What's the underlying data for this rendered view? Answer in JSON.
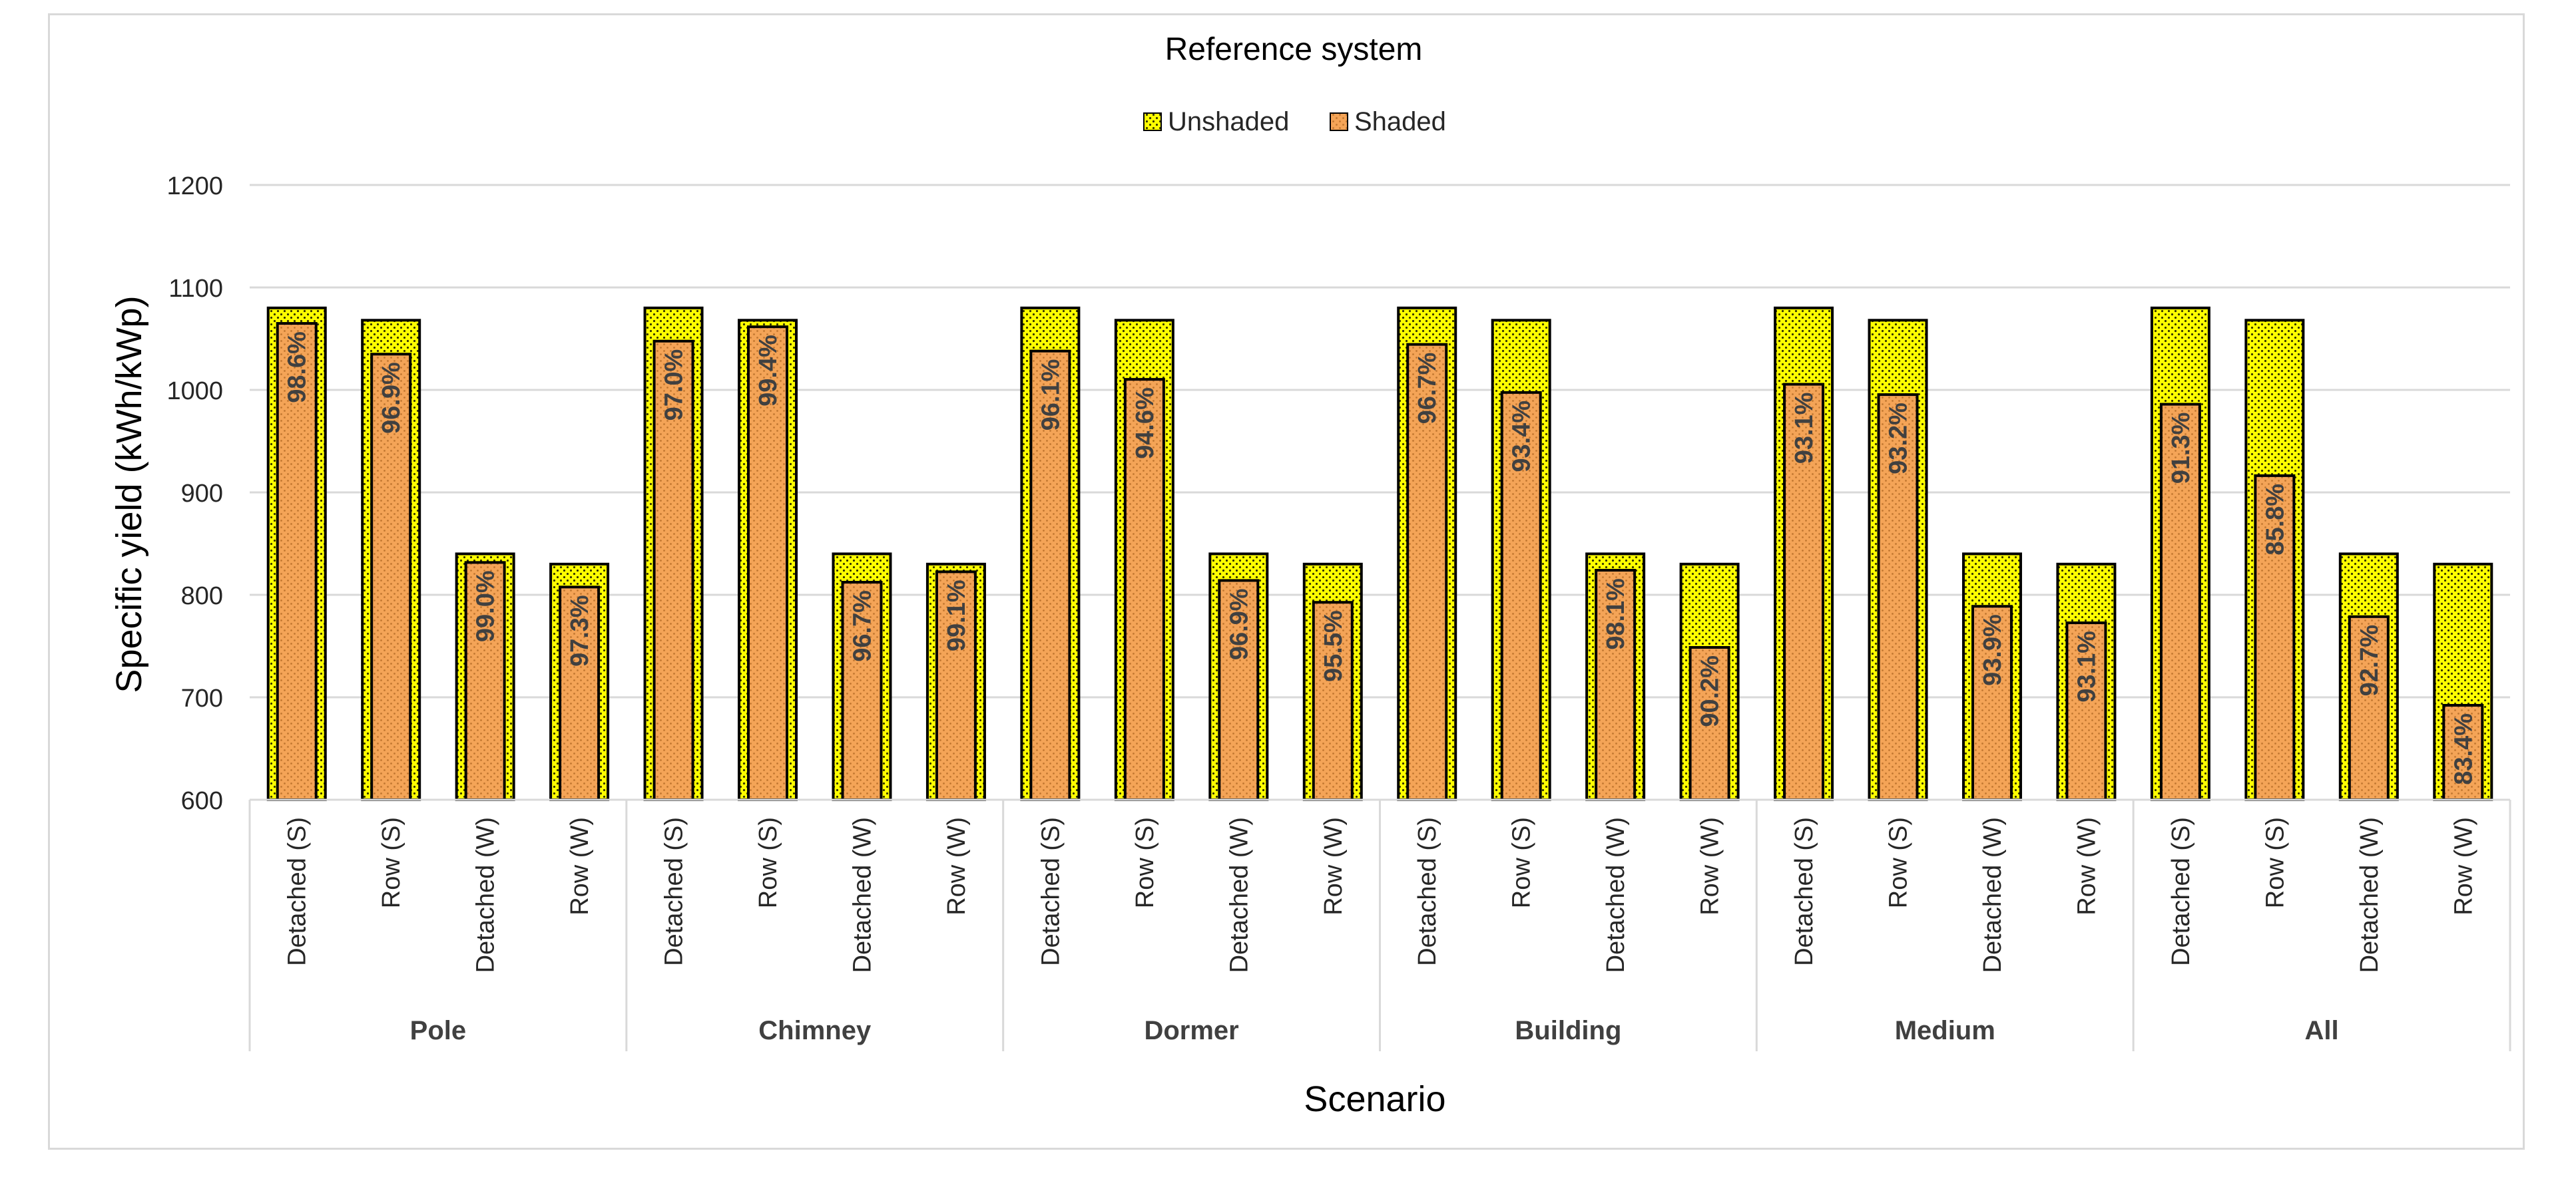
{
  "chart_data": {
    "type": "bar",
    "title": "Reference system",
    "xlabel": "Scenario",
    "ylabel": "Specific yield (kWh/kWp)",
    "ylim": [
      600,
      1200
    ],
    "yticks": [
      "600",
      "700",
      "800",
      "900",
      "1000",
      "1100",
      "1200"
    ],
    "grid": true,
    "legend_position": "top-center",
    "groups": [
      "Pole",
      "Chimney",
      "Dormer",
      "Building",
      "Medium",
      "All"
    ],
    "subcategories": [
      "Detached (S)",
      "Row (S)",
      "Detached (W)",
      "Row (W)"
    ],
    "series": [
      {
        "name": "Unshaded",
        "color": "#ffff00",
        "values": [
          1080,
          1068,
          840,
          830,
          1080,
          1068,
          840,
          830,
          1080,
          1068,
          840,
          830,
          1080,
          1068,
          840,
          830,
          1080,
          1068,
          840,
          830,
          1080,
          1068,
          840,
          830
        ]
      },
      {
        "name": "Shaded",
        "color": "#f4a457",
        "values": [
          1064.9,
          1034.9,
          831.6,
          807.6,
          1047.6,
          1061.6,
          812.3,
          822.5,
          1037.9,
          1010.3,
          814,
          792.7,
          1044.4,
          997.5,
          824,
          748.7,
          1005.5,
          995.4,
          788.8,
          772.7,
          986,
          916.3,
          778.7,
          692.2
        ],
        "labels": [
          "98.6%",
          "96.9%",
          "99.0%",
          "97.3%",
          "97.0%",
          "99.4%",
          "96.7%",
          "99.1%",
          "96.1%",
          "94.6%",
          "96.9%",
          "95.5%",
          "96.7%",
          "93.4%",
          "98.1%",
          "90.2%",
          "93.1%",
          "93.2%",
          "93.9%",
          "93.1%",
          "91.3%",
          "85.8%",
          "92.7%",
          "83.4%"
        ]
      }
    ]
  }
}
